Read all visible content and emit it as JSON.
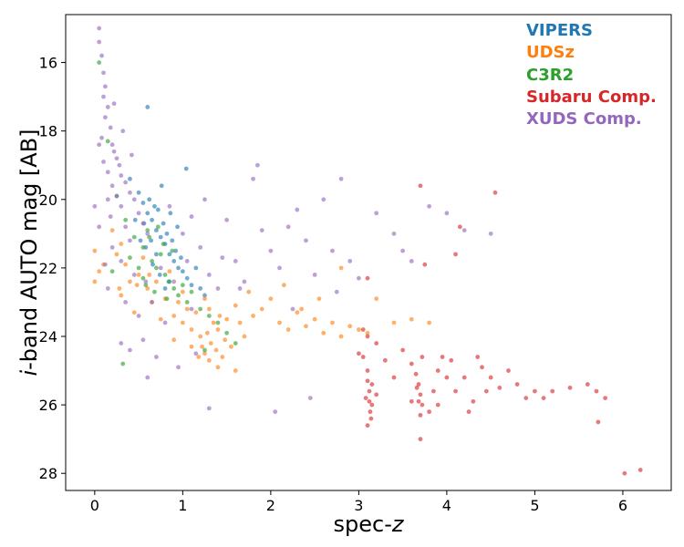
{
  "chart_data": {
    "type": "scatter",
    "title": "",
    "xlabel": "spec-",
    "xlabel_italic": "z",
    "ylabel": "-band AUTO mag [AB]",
    "ylabel_italic": "i",
    "xlim": [
      -0.33,
      6.55
    ],
    "ylim": [
      28.5,
      14.6
    ],
    "y_inverted": true,
    "x_ticks": [
      0,
      1,
      2,
      3,
      4,
      5,
      6
    ],
    "y_ticks": [
      16,
      18,
      20,
      22,
      24,
      26,
      28
    ],
    "grid": false,
    "legend_position": "top-right",
    "series": [
      {
        "name": "VIPERS",
        "color": "#1f77b4",
        "points": [
          [
            0.4,
            19.4
          ],
          [
            0.5,
            19.8
          ],
          [
            0.55,
            20.1
          ],
          [
            0.6,
            20.4
          ],
          [
            0.65,
            20.6
          ],
          [
            0.7,
            20.9
          ],
          [
            0.75,
            21.1
          ],
          [
            0.8,
            21.3
          ],
          [
            0.85,
            21.6
          ],
          [
            0.9,
            21.8
          ],
          [
            0.95,
            22.0
          ],
          [
            1.0,
            22.1
          ],
          [
            1.05,
            22.3
          ],
          [
            1.1,
            22.5
          ],
          [
            0.72,
            20.3
          ],
          [
            0.78,
            20.7
          ],
          [
            0.82,
            21.0
          ],
          [
            0.88,
            21.2
          ],
          [
            0.92,
            21.5
          ],
          [
            0.98,
            21.7
          ],
          [
            0.62,
            20.0
          ],
          [
            0.68,
            20.2
          ],
          [
            0.58,
            21.4
          ],
          [
            0.66,
            21.9
          ],
          [
            0.74,
            22.2
          ],
          [
            0.84,
            22.4
          ],
          [
            0.46,
            20.6
          ],
          [
            0.52,
            21.2
          ],
          [
            0.6,
            17.3
          ],
          [
            0.76,
            19.6
          ],
          [
            1.04,
            19.1
          ],
          [
            1.25,
            22.8
          ],
          [
            1.15,
            22.0
          ],
          [
            0.94,
            20.8
          ],
          [
            0.8,
            22.6
          ],
          [
            0.7,
            21.6
          ],
          [
            0.64,
            21.2
          ],
          [
            0.56,
            20.7
          ],
          [
            1.2,
            22.6
          ],
          [
            0.86,
            20.4
          ]
        ]
      },
      {
        "name": "UDSz",
        "color": "#ff7f0e",
        "points": [
          [
            0.0,
            21.5
          ],
          [
            0.0,
            22.4
          ],
          [
            0.05,
            22.1
          ],
          [
            0.1,
            21.9
          ],
          [
            0.2,
            20.9
          ],
          [
            0.25,
            21.6
          ],
          [
            0.3,
            22.8
          ],
          [
            0.35,
            21.9
          ],
          [
            0.4,
            22.4
          ],
          [
            0.45,
            23.3
          ],
          [
            0.5,
            22.2
          ],
          [
            0.55,
            21.7
          ],
          [
            0.6,
            22.6
          ],
          [
            0.65,
            23.0
          ],
          [
            0.7,
            22.4
          ],
          [
            0.75,
            23.5
          ],
          [
            0.8,
            22.9
          ],
          [
            0.85,
            22.1
          ],
          [
            0.9,
            23.4
          ],
          [
            0.95,
            23.0
          ],
          [
            1.0,
            23.6
          ],
          [
            1.05,
            23.2
          ],
          [
            1.1,
            23.8
          ],
          [
            1.15,
            23.3
          ],
          [
            1.2,
            24.0
          ],
          [
            1.22,
            24.3
          ],
          [
            1.25,
            24.5
          ],
          [
            1.28,
            23.9
          ],
          [
            1.3,
            24.7
          ],
          [
            1.32,
            24.2
          ],
          [
            1.35,
            23.6
          ],
          [
            1.38,
            24.4
          ],
          [
            1.4,
            24.9
          ],
          [
            1.42,
            23.4
          ],
          [
            1.45,
            24.6
          ],
          [
            1.48,
            24.1
          ],
          [
            1.25,
            22.9
          ],
          [
            1.3,
            23.2
          ],
          [
            1.4,
            23.8
          ],
          [
            1.5,
            23.5
          ],
          [
            1.55,
            24.3
          ],
          [
            1.6,
            23.1
          ],
          [
            1.65,
            23.6
          ],
          [
            1.7,
            24.0
          ],
          [
            1.8,
            23.4
          ],
          [
            1.9,
            23.2
          ],
          [
            2.0,
            22.9
          ],
          [
            2.1,
            23.6
          ],
          [
            2.2,
            23.8
          ],
          [
            2.3,
            23.3
          ],
          [
            2.4,
            23.7
          ],
          [
            2.5,
            23.5
          ],
          [
            2.6,
            23.9
          ],
          [
            2.7,
            23.6
          ],
          [
            2.8,
            24.0
          ],
          [
            2.9,
            23.7
          ],
          [
            3.0,
            23.8
          ],
          [
            3.1,
            23.9
          ],
          [
            3.2,
            22.9
          ],
          [
            3.4,
            23.6
          ],
          [
            3.6,
            23.5
          ],
          [
            3.8,
            23.6
          ],
          [
            2.8,
            22.0
          ],
          [
            1.1,
            24.3
          ],
          [
            1.18,
            24.6
          ],
          [
            0.9,
            24.1
          ],
          [
            1.0,
            22.7
          ],
          [
            0.62,
            22.2
          ],
          [
            0.3,
            21.3
          ],
          [
            1.6,
            25.0
          ],
          [
            2.15,
            22.5
          ],
          [
            1.75,
            22.7
          ],
          [
            2.55,
            22.9
          ],
          [
            2.35,
            23.2
          ],
          [
            0.48,
            22.5
          ],
          [
            0.28,
            22.6
          ]
        ]
      },
      {
        "name": "C3R2",
        "color": "#2ca02c",
        "points": [
          [
            0.05,
            16.0
          ],
          [
            0.15,
            18.3
          ],
          [
            0.25,
            19.9
          ],
          [
            0.35,
            20.6
          ],
          [
            0.45,
            21.1
          ],
          [
            0.55,
            21.4
          ],
          [
            0.6,
            20.9
          ],
          [
            0.65,
            21.8
          ],
          [
            0.7,
            22.0
          ],
          [
            0.75,
            21.6
          ],
          [
            0.8,
            22.2
          ],
          [
            0.85,
            22.4
          ],
          [
            0.9,
            22.6
          ],
          [
            0.95,
            22.8
          ],
          [
            1.0,
            22.5
          ],
          [
            1.05,
            23.0
          ],
          [
            1.1,
            22.7
          ],
          [
            1.2,
            23.2
          ],
          [
            1.3,
            23.4
          ],
          [
            1.4,
            23.6
          ],
          [
            1.5,
            23.9
          ],
          [
            1.6,
            24.2
          ],
          [
            0.5,
            22.0
          ],
          [
            0.4,
            21.7
          ],
          [
            0.55,
            22.3
          ],
          [
            0.68,
            22.7
          ],
          [
            0.78,
            21.3
          ],
          [
            0.88,
            21.5
          ],
          [
            0.32,
            24.8
          ],
          [
            0.2,
            22.1
          ],
          [
            0.62,
            21.1
          ],
          [
            0.72,
            20.8
          ],
          [
            1.25,
            24.4
          ],
          [
            0.58,
            22.5
          ],
          [
            0.82,
            22.9
          ]
        ]
      },
      {
        "name": "Subaru Comp.",
        "color": "#d62728",
        "points": [
          [
            3.1,
            25.0
          ],
          [
            3.1,
            25.3
          ],
          [
            3.12,
            25.6
          ],
          [
            3.12,
            25.9
          ],
          [
            3.13,
            26.2
          ],
          [
            3.14,
            26.4
          ],
          [
            3.1,
            26.6
          ],
          [
            3.15,
            25.4
          ],
          [
            3.08,
            25.8
          ],
          [
            3.15,
            26.0
          ],
          [
            3.05,
            24.6
          ],
          [
            3.1,
            24.0
          ],
          [
            3.05,
            23.8
          ],
          [
            3.1,
            22.3
          ],
          [
            3.2,
            24.2
          ],
          [
            3.3,
            24.7
          ],
          [
            3.4,
            25.2
          ],
          [
            3.5,
            24.4
          ],
          [
            3.6,
            24.8
          ],
          [
            3.65,
            25.1
          ],
          [
            3.68,
            25.4
          ],
          [
            3.7,
            25.7
          ],
          [
            3.72,
            26.0
          ],
          [
            3.7,
            26.3
          ],
          [
            3.68,
            25.9
          ],
          [
            3.66,
            25.5
          ],
          [
            3.72,
            24.6
          ],
          [
            3.7,
            19.6
          ],
          [
            3.75,
            21.9
          ],
          [
            3.7,
            27.0
          ],
          [
            3.8,
            26.2
          ],
          [
            3.85,
            25.6
          ],
          [
            3.9,
            25.0
          ],
          [
            3.95,
            24.6
          ],
          [
            4.0,
            25.2
          ],
          [
            4.05,
            24.7
          ],
          [
            4.1,
            21.6
          ],
          [
            4.1,
            25.6
          ],
          [
            4.15,
            20.8
          ],
          [
            4.2,
            25.2
          ],
          [
            4.3,
            25.9
          ],
          [
            4.4,
            24.9
          ],
          [
            4.5,
            25.2
          ],
          [
            4.55,
            19.8
          ],
          [
            4.6,
            25.5
          ],
          [
            4.7,
            25.0
          ],
          [
            4.8,
            25.4
          ],
          [
            4.9,
            25.8
          ],
          [
            5.0,
            25.6
          ],
          [
            5.2,
            25.6
          ],
          [
            5.4,
            25.5
          ],
          [
            5.6,
            25.4
          ],
          [
            5.7,
            25.6
          ],
          [
            5.72,
            26.5
          ],
          [
            5.8,
            25.8
          ],
          [
            6.02,
            28.0
          ],
          [
            6.2,
            27.9
          ],
          [
            3.6,
            25.9
          ],
          [
            3.9,
            26.0
          ],
          [
            4.25,
            26.2
          ],
          [
            4.45,
            25.6
          ],
          [
            5.1,
            25.8
          ],
          [
            4.35,
            24.6
          ],
          [
            3.0,
            24.5
          ],
          [
            3.2,
            25.7
          ]
        ]
      },
      {
        "name": "XUDS Comp.",
        "color": "#9467bd",
        "points": [
          [
            0.05,
            15.0
          ],
          [
            0.05,
            15.4
          ],
          [
            0.08,
            15.8
          ],
          [
            0.1,
            16.3
          ],
          [
            0.12,
            16.7
          ],
          [
            0.1,
            17.0
          ],
          [
            0.15,
            17.3
          ],
          [
            0.12,
            17.6
          ],
          [
            0.18,
            17.9
          ],
          [
            0.08,
            18.2
          ],
          [
            0.2,
            18.4
          ],
          [
            0.22,
            18.6
          ],
          [
            0.25,
            18.8
          ],
          [
            0.1,
            18.9
          ],
          [
            0.28,
            19.0
          ],
          [
            0.15,
            19.2
          ],
          [
            0.3,
            19.3
          ],
          [
            0.35,
            19.5
          ],
          [
            0.2,
            19.6
          ],
          [
            0.4,
            19.8
          ],
          [
            0.25,
            19.9
          ],
          [
            0.45,
            20.0
          ],
          [
            0.3,
            20.2
          ],
          [
            0.5,
            20.4
          ],
          [
            0.18,
            20.5
          ],
          [
            0.55,
            20.7
          ],
          [
            0.35,
            20.8
          ],
          [
            0.6,
            21.0
          ],
          [
            0.4,
            21.2
          ],
          [
            0.05,
            20.8
          ],
          [
            0.0,
            20.2
          ],
          [
            0.2,
            21.4
          ],
          [
            0.3,
            21.8
          ],
          [
            0.45,
            22.2
          ],
          [
            0.15,
            22.6
          ],
          [
            0.35,
            23.0
          ],
          [
            0.5,
            23.4
          ],
          [
            0.55,
            24.1
          ],
          [
            0.4,
            24.4
          ],
          [
            0.3,
            24.2
          ],
          [
            0.6,
            25.2
          ],
          [
            0.7,
            24.6
          ],
          [
            0.8,
            23.6
          ],
          [
            0.9,
            22.4
          ],
          [
            1.0,
            21.0
          ],
          [
            1.1,
            20.5
          ],
          [
            1.2,
            21.4
          ],
          [
            1.3,
            22.2
          ],
          [
            1.4,
            22.6
          ],
          [
            1.5,
            20.6
          ],
          [
            1.6,
            21.8
          ],
          [
            1.7,
            22.4
          ],
          [
            1.8,
            19.4
          ],
          [
            1.85,
            19.0
          ],
          [
            1.9,
            20.9
          ],
          [
            2.0,
            21.5
          ],
          [
            2.1,
            22.0
          ],
          [
            2.2,
            20.8
          ],
          [
            2.3,
            20.3
          ],
          [
            2.4,
            21.2
          ],
          [
            2.5,
            22.2
          ],
          [
            2.6,
            20.0
          ],
          [
            2.7,
            21.5
          ],
          [
            2.8,
            19.4
          ],
          [
            2.9,
            21.8
          ],
          [
            3.0,
            22.3
          ],
          [
            3.2,
            20.4
          ],
          [
            3.4,
            21.0
          ],
          [
            3.5,
            21.5
          ],
          [
            3.6,
            21.8
          ],
          [
            3.8,
            20.2
          ],
          [
            4.0,
            20.4
          ],
          [
            4.2,
            20.9
          ],
          [
            4.5,
            21.0
          ],
          [
            2.05,
            26.2
          ],
          [
            1.3,
            26.1
          ],
          [
            2.45,
            25.8
          ],
          [
            0.95,
            24.9
          ],
          [
            1.15,
            24.5
          ],
          [
            0.65,
            23.0
          ],
          [
            0.75,
            22.0
          ],
          [
            1.05,
            21.8
          ],
          [
            1.25,
            20.0
          ],
          [
            0.22,
            17.2
          ],
          [
            0.05,
            18.4
          ],
          [
            0.15,
            20.0
          ],
          [
            0.32,
            18.0
          ],
          [
            0.42,
            18.7
          ],
          [
            0.12,
            21.9
          ],
          [
            0.58,
            22.4
          ],
          [
            1.45,
            21.7
          ],
          [
            1.65,
            22.6
          ],
          [
            2.25,
            23.2
          ],
          [
            2.75,
            22.7
          ],
          [
            0.85,
            20.2
          ],
          [
            1.1,
            23.2
          ]
        ]
      }
    ]
  }
}
